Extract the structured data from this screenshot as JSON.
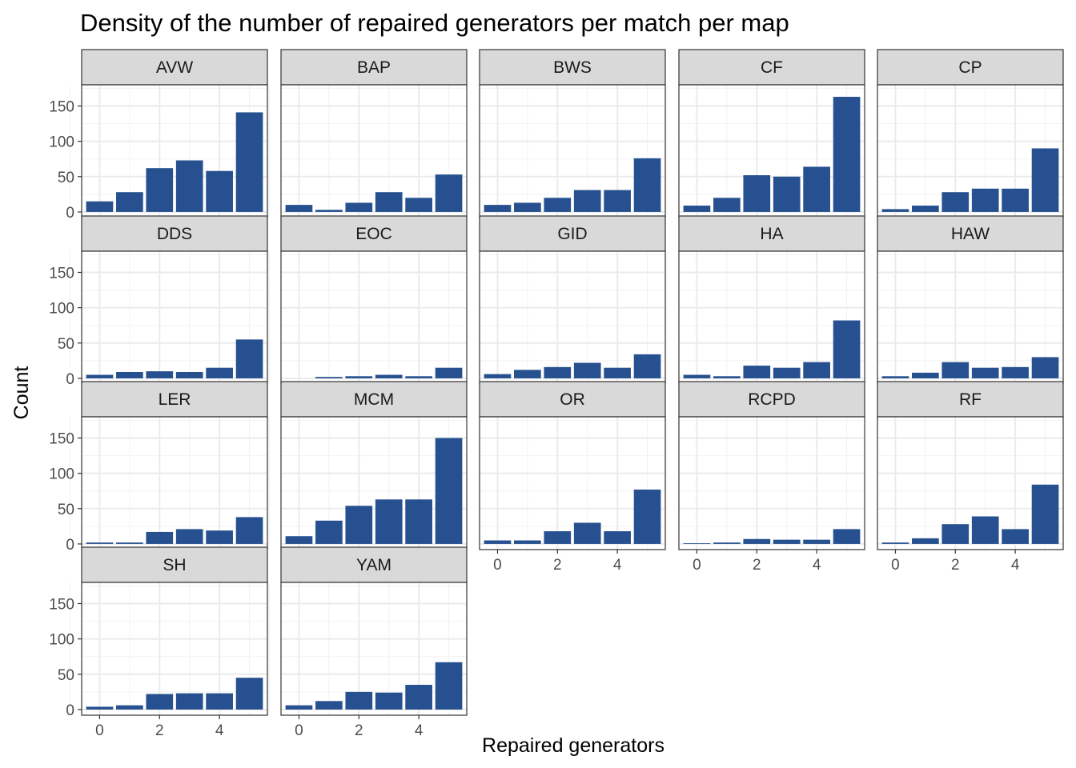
{
  "chart_data": {
    "type": "bar",
    "title": "Density of the number of repaired generators per match per map",
    "xlabel": "Repaired generators",
    "ylabel": "Count",
    "x": [
      0,
      1,
      2,
      3,
      4,
      5
    ],
    "x_ticks": [
      "0",
      "2",
      "4"
    ],
    "y_ticks": [
      "0",
      "50",
      "100",
      "150"
    ],
    "xlim": [
      -0.6,
      5.6
    ],
    "ylim": [
      -8,
      180
    ],
    "grid": true,
    "bar_color": "#26508f",
    "panels": [
      {
        "name": "AVW",
        "values": [
          15,
          28,
          62,
          73,
          58,
          141
        ]
      },
      {
        "name": "BAP",
        "values": [
          10,
          3,
          13,
          28,
          20,
          53
        ]
      },
      {
        "name": "BWS",
        "values": [
          10,
          13,
          20,
          31,
          31,
          76
        ]
      },
      {
        "name": "CF",
        "values": [
          9,
          20,
          52,
          50,
          64,
          163
        ]
      },
      {
        "name": "CP",
        "values": [
          4,
          9,
          28,
          33,
          33,
          90
        ]
      },
      {
        "name": "DDS",
        "values": [
          5,
          9,
          10,
          9,
          15,
          55
        ]
      },
      {
        "name": "EOC",
        "values": [
          0,
          2,
          3,
          5,
          3,
          15
        ]
      },
      {
        "name": "GID",
        "values": [
          6,
          12,
          16,
          22,
          15,
          34
        ]
      },
      {
        "name": "HA",
        "values": [
          5,
          3,
          18,
          15,
          23,
          82
        ]
      },
      {
        "name": "HAW",
        "values": [
          3,
          8,
          23,
          15,
          16,
          30
        ]
      },
      {
        "name": "LER",
        "values": [
          2,
          2,
          17,
          21,
          19,
          38
        ]
      },
      {
        "name": "MCM",
        "values": [
          11,
          33,
          54,
          63,
          63,
          150
        ]
      },
      {
        "name": "OR",
        "values": [
          5,
          5,
          18,
          30,
          18,
          77
        ]
      },
      {
        "name": "RCPD",
        "values": [
          1,
          2,
          7,
          6,
          6,
          21
        ]
      },
      {
        "name": "RF",
        "values": [
          2,
          8,
          28,
          39,
          21,
          84
        ]
      },
      {
        "name": "SH",
        "values": [
          4,
          6,
          22,
          23,
          23,
          45
        ]
      },
      {
        "name": "YAM",
        "values": [
          6,
          12,
          25,
          24,
          35,
          67
        ]
      }
    ]
  }
}
